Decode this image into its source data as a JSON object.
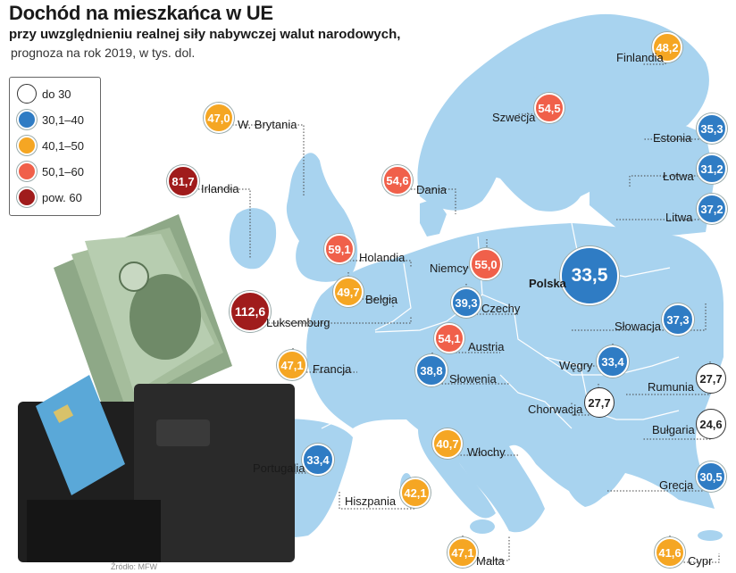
{
  "title": "Dochód na mieszkańca w UE",
  "subtitle_line1": "przy uwzględnieniu realnej siły nabywczej walut narodowych,",
  "subtitle_line2": "prognoza na rok 2019, w tys. dol.",
  "source": "Źródło: MFW",
  "legend": [
    {
      "label": "do 30",
      "color": "#ffffff"
    },
    {
      "label": "30,1–40",
      "color": "#2f7cc4"
    },
    {
      "label": "40,1–50",
      "color": "#f5a623"
    },
    {
      "label": "50,1–60",
      "color": "#f0604a"
    },
    {
      "label": "pow. 60",
      "color": "#a01c1c"
    }
  ],
  "countries": {
    "finlandia": {
      "name": "Finlandia",
      "value": "48,2",
      "cls": "40,1–50"
    },
    "szwecja": {
      "name": "Szwecja",
      "value": "54,5",
      "cls": "50,1–60"
    },
    "estonia": {
      "name": "Estonia",
      "value": "35,3",
      "cls": "30,1–40"
    },
    "lotwa": {
      "name": "Łotwa",
      "value": "31,2",
      "cls": "30,1–40"
    },
    "litwa": {
      "name": "Litwa",
      "value": "37,2",
      "cls": "30,1–40"
    },
    "wbrytania": {
      "name": "W. Brytania",
      "value": "47,0",
      "cls": "40,1–50"
    },
    "irlandia": {
      "name": "Irlandia",
      "value": "81,7",
      "cls": "pow. 60"
    },
    "dania": {
      "name": "Dania",
      "value": "54,6",
      "cls": "50,1–60"
    },
    "holandia": {
      "name": "Holandia",
      "value": "59,1",
      "cls": "50,1–60"
    },
    "niemcy": {
      "name": "Niemcy",
      "value": "55,0",
      "cls": "50,1–60"
    },
    "polska": {
      "name": "Polska",
      "value": "33,5",
      "cls": "30,1–40"
    },
    "belgia": {
      "name": "Belgia",
      "value": "49,7",
      "cls": "40,1–50"
    },
    "luksemburg": {
      "name": "Luksemburg",
      "value": "112,6",
      "cls": "pow. 60"
    },
    "czechy": {
      "name": "Czechy",
      "value": "39,3",
      "cls": "30,1–40"
    },
    "slowacja": {
      "name": "Słowacja",
      "value": "37,3",
      "cls": "30,1–40"
    },
    "austria": {
      "name": "Austria",
      "value": "54,1",
      "cls": "50,1–60"
    },
    "francja": {
      "name": "Francja",
      "value": "47,1",
      "cls": "40,1–50"
    },
    "slowenia": {
      "name": "Słowenia",
      "value": "38,8",
      "cls": "30,1–40"
    },
    "wegry": {
      "name": "Węgry",
      "value": "33,4",
      "cls": "30,1–40"
    },
    "rumunia": {
      "name": "Rumunia",
      "value": "27,7",
      "cls": "do 30"
    },
    "chorwacja": {
      "name": "Chorwacja",
      "value": "27,7",
      "cls": "do 30"
    },
    "bulgaria": {
      "name": "Bułgaria",
      "value": "24,6",
      "cls": "do 30"
    },
    "portugalia": {
      "name": "Portugalia",
      "value": "33,4",
      "cls": "30,1–40"
    },
    "wlochy": {
      "name": "Włochy",
      "value": "40,7",
      "cls": "40,1–50"
    },
    "hiszpania": {
      "name": "Hiszpania",
      "value": "42,1",
      "cls": "40,1–50"
    },
    "grecja": {
      "name": "Grecja",
      "value": "30,5",
      "cls": "30,1–40"
    },
    "malta": {
      "name": "Malta",
      "value": "47,1",
      "cls": "40,1–50"
    },
    "cypr": {
      "name": "Cypr",
      "value": "41,6",
      "cls": "40,1–50"
    }
  }
}
